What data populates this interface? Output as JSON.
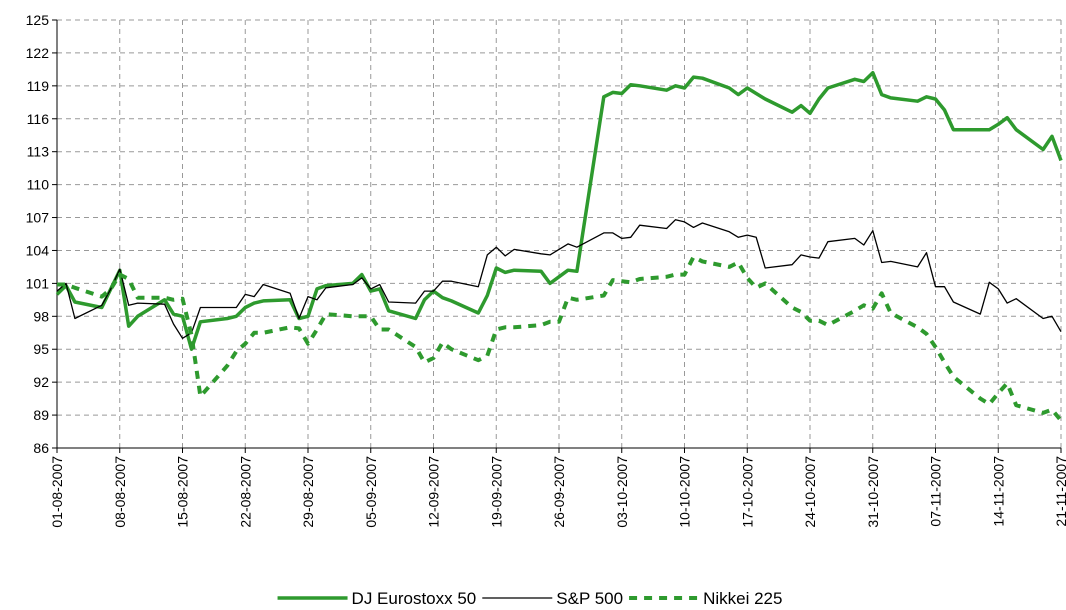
{
  "chart_data": {
    "type": "line",
    "x": [
      "01-08-2007",
      "02-08-2007",
      "03-08-2007",
      "06-08-2007",
      "07-08-2007",
      "08-08-2007",
      "09-08-2007",
      "10-08-2007",
      "13-08-2007",
      "14-08-2007",
      "15-08-2007",
      "16-08-2007",
      "17-08-2007",
      "20-08-2007",
      "21-08-2007",
      "22-08-2007",
      "23-08-2007",
      "24-08-2007",
      "27-08-2007",
      "28-08-2007",
      "29-08-2007",
      "30-08-2007",
      "31-08-2007",
      "03-09-2007",
      "04-09-2007",
      "05-09-2007",
      "06-09-2007",
      "07-09-2007",
      "10-09-2007",
      "11-09-2007",
      "12-09-2007",
      "13-09-2007",
      "14-09-2007",
      "17-09-2007",
      "18-09-2007",
      "19-09-2007",
      "20-09-2007",
      "21-09-2007",
      "24-09-2007",
      "25-09-2007",
      "26-09-2007",
      "27-09-2007",
      "28-09-2007",
      "01-10-2007",
      "02-10-2007",
      "03-10-2007",
      "04-10-2007",
      "05-10-2007",
      "08-10-2007",
      "09-10-2007",
      "10-10-2007",
      "11-10-2007",
      "12-10-2007",
      "15-10-2007",
      "16-10-2007",
      "17-10-2007",
      "18-10-2007",
      "19-10-2007",
      "22-10-2007",
      "23-10-2007",
      "24-10-2007",
      "25-10-2007",
      "26-10-2007",
      "29-10-2007",
      "30-10-2007",
      "31-10-2007",
      "01-11-2007",
      "02-11-2007",
      "05-11-2007",
      "06-11-2007",
      "07-11-2007",
      "08-11-2007",
      "09-11-2007",
      "12-11-2007",
      "13-11-2007",
      "14-11-2007",
      "15-11-2007",
      "16-11-2007",
      "19-11-2007",
      "20-11-2007",
      "21-11-2007"
    ],
    "series": [
      {
        "name": "DJ Eurostoxx 50",
        "color": "#2e9a2e",
        "style": "thick",
        "values": [
          100,
          100.8,
          99.3,
          98.8,
          100.5,
          102.2,
          97.1,
          98,
          99.5,
          98.2,
          98,
          95,
          97.5,
          97.8,
          98,
          98.8,
          99.2,
          99.4,
          99.5,
          97.8,
          98,
          100.5,
          100.8,
          101,
          101.8,
          100.3,
          100.5,
          98.5,
          97.8,
          99.5,
          100.3,
          99.7,
          99.4,
          98.3,
          99.9,
          102.4,
          102,
          102.2,
          102.1,
          101,
          101.6,
          102.2,
          102.1,
          118,
          118.4,
          118.3,
          119.1,
          119,
          118.6,
          119,
          118.8,
          119.8,
          119.7,
          118.8,
          118.2,
          118.8,
          118.3,
          117.8,
          116.6,
          117.2,
          116.5,
          117.8,
          118.8,
          119.6,
          119.4,
          120.2,
          118.2,
          117.9,
          117.6,
          118,
          117.8,
          116.8,
          115,
          115,
          115,
          115.5,
          116.1,
          115,
          113.2,
          114.4,
          112.2
        ]
      },
      {
        "name": "S&P 500",
        "color": "#000000",
        "style": "thin",
        "values": [
          100.3,
          101,
          97.8,
          99,
          100.5,
          102.3,
          99,
          99.2,
          99.1,
          97.3,
          96,
          96.5,
          98.8,
          98.8,
          98.8,
          100,
          99.8,
          100.9,
          100.1,
          97.8,
          99.8,
          99.5,
          100.6,
          100.9,
          101.5,
          100.5,
          100.9,
          99.3,
          99.2,
          100.3,
          100.3,
          101.2,
          101.2,
          100.7,
          103.6,
          104.3,
          103.5,
          104.1,
          103.7,
          103.6,
          104.1,
          104.6,
          104.3,
          105.6,
          105.6,
          105.1,
          105.2,
          106.3,
          106,
          106.8,
          106.6,
          106.1,
          106.5,
          105.7,
          105.2,
          105.4,
          105.2,
          102.4,
          102.7,
          103.6,
          103.4,
          103.3,
          104.8,
          105.1,
          104.5,
          105.8,
          102.9,
          103,
          102.5,
          103.8,
          100.7,
          100.7,
          99.3,
          98.2,
          101.1,
          100.5,
          99.2,
          99.6,
          97.8,
          98,
          96.6
        ]
      },
      {
        "name": "Nikkei 225",
        "color": "#2e9a2e",
        "style": "dashed",
        "values": [
          100.9,
          100.9,
          100.6,
          99.8,
          100.5,
          101.8,
          101.4,
          99.7,
          99.7,
          99.5,
          99.6,
          96.3,
          90.7,
          93.5,
          94.8,
          95.5,
          96.5,
          96.5,
          97,
          96.9,
          95.5,
          96.8,
          98.2,
          98,
          98,
          98,
          96.8,
          96.8,
          95.2,
          93.8,
          94.2,
          95.6,
          95,
          94,
          94.4,
          96.8,
          97,
          97,
          97.2,
          97.5,
          97.5,
          99.7,
          99.5,
          99.9,
          101.3,
          101.2,
          101.1,
          101.4,
          101.6,
          101.8,
          101.8,
          103.4,
          103,
          102.5,
          102.9,
          101.5,
          100.6,
          101,
          98.8,
          98.4,
          97.6,
          97.6,
          97.2,
          98.5,
          99,
          98.7,
          100.1,
          98.3,
          97,
          96.4,
          95.2,
          93.8,
          92.5,
          90.5,
          90,
          91,
          91.9,
          89.9,
          89.2,
          89.5,
          88.5
        ]
      }
    ],
    "xlim": [
      "01-08-2007",
      "21-11-2007"
    ],
    "xticks": [
      "01-08-2007",
      "08-08-2007",
      "15-08-2007",
      "22-08-2007",
      "29-08-2007",
      "05-09-2007",
      "12-09-2007",
      "19-09-2007",
      "26-09-2007",
      "03-10-2007",
      "10-10-2007",
      "17-10-2007",
      "24-10-2007",
      "31-10-2007",
      "07-11-2007",
      "14-11-2007",
      "21-11-2007"
    ],
    "ylim": [
      86,
      125
    ],
    "yticks": [
      86,
      89,
      92,
      95,
      98,
      101,
      104,
      107,
      110,
      113,
      116,
      119,
      122,
      125
    ],
    "grid": true,
    "legend": "bottom"
  }
}
